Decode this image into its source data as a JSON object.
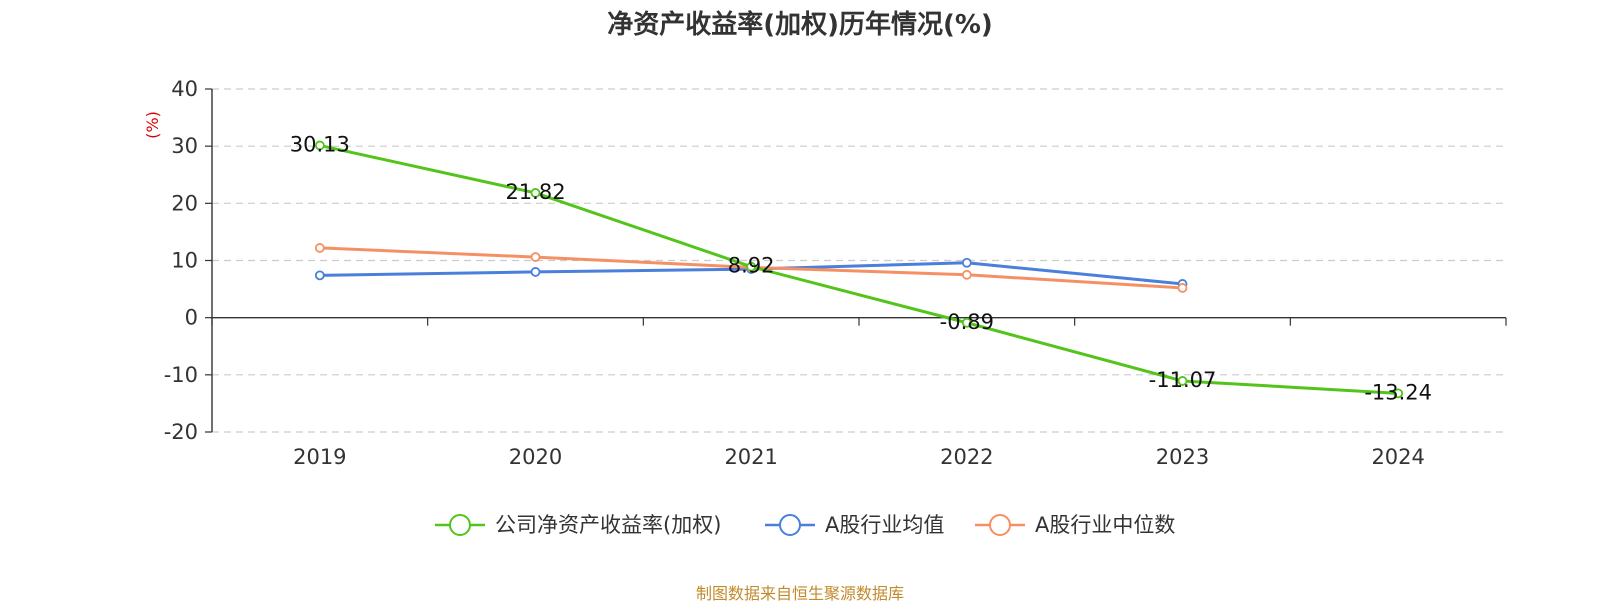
{
  "chart_data": {
    "type": "line",
    "title": "净资产收益率(加权)历年情况(%)",
    "ylabel": "(%)",
    "xlabel": "",
    "categories": [
      "2019",
      "2020",
      "2021",
      "2022",
      "2023",
      "2024"
    ],
    "ylim": [
      -20,
      40
    ],
    "yticks": [
      40,
      30,
      20,
      10,
      0,
      -10,
      -20
    ],
    "grid": true,
    "legend_position": "bottom",
    "series": [
      {
        "name": "公司净资产收益率(加权)",
        "color": "#52c41a",
        "values": [
          30.13,
          21.82,
          8.92,
          -0.89,
          -11.07,
          -13.24
        ],
        "labels": [
          "30.13",
          "21.82",
          "8.92",
          "-0.89",
          "-11.07",
          "-13.24"
        ]
      },
      {
        "name": "A股行业均值",
        "color": "#4a7fdc",
        "values": [
          7.4,
          8.0,
          8.5,
          9.6,
          5.9,
          null
        ]
      },
      {
        "name": "A股行业中位数",
        "color": "#f59064",
        "values": [
          12.2,
          10.6,
          8.8,
          7.5,
          5.2,
          null
        ]
      }
    ]
  },
  "footer": {
    "source": "制图数据来自恒生聚源数据库"
  }
}
